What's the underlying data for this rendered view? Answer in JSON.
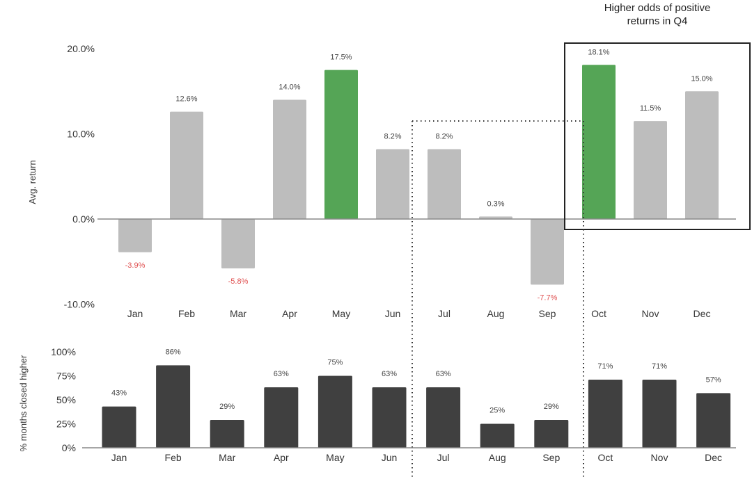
{
  "chart_data": [
    {
      "type": "bar",
      "name": "avg-return",
      "categories": [
        "Jan",
        "Feb",
        "Mar",
        "Apr",
        "May",
        "Jun",
        "Jul",
        "Aug",
        "Sep",
        "Oct",
        "Nov",
        "Dec"
      ],
      "values": [
        -3.9,
        12.6,
        -5.8,
        14.0,
        17.5,
        8.2,
        8.2,
        0.3,
        -7.7,
        18.1,
        11.5,
        15.0
      ],
      "labels": [
        "-3.9%",
        "12.6%",
        "-5.8%",
        "14.0%",
        "17.5%",
        "8.2%",
        "8.2%",
        "0.3%",
        "-7.7%",
        "18.1%",
        "11.5%",
        "15.0%"
      ],
      "highlight": [
        "May",
        "Oct"
      ],
      "ylabel": "Avg. return",
      "xlabel": "",
      "ylim": [
        -10,
        20
      ],
      "yticks": [
        20,
        10,
        0,
        -10
      ],
      "ytick_labels": [
        "20.0%",
        "10.0%",
        "0.0%",
        "-10.0%"
      ],
      "colors": {
        "bar": "#bdbdbd",
        "highlight": "#55a556",
        "negative_label": "#e05050",
        "label": "#444444"
      },
      "annotation": {
        "text_line1": "Higher odds of positive",
        "text_line2": "returns in Q4",
        "box_months": [
          "Oct",
          "Nov",
          "Dec"
        ]
      }
    },
    {
      "type": "bar",
      "name": "pct-months-closed-higher",
      "categories": [
        "Jan",
        "Feb",
        "Mar",
        "Apr",
        "May",
        "Jun",
        "Jul",
        "Aug",
        "Sep",
        "Oct",
        "Nov",
        "Dec"
      ],
      "values": [
        43,
        86,
        29,
        63,
        75,
        63,
        63,
        25,
        29,
        71,
        71,
        57
      ],
      "labels": [
        "43%",
        "86%",
        "29%",
        "63%",
        "75%",
        "63%",
        "63%",
        "25%",
        "29%",
        "71%",
        "71%",
        "57%"
      ],
      "ylabel": "% months closed higher",
      "xlabel": "",
      "ylim": [
        0,
        100
      ],
      "yticks": [
        100,
        75,
        50,
        25,
        0
      ],
      "ytick_labels": [
        "100%",
        "75%",
        "50%",
        "25%",
        "0%"
      ],
      "colors": {
        "bar": "#404040"
      }
    }
  ]
}
